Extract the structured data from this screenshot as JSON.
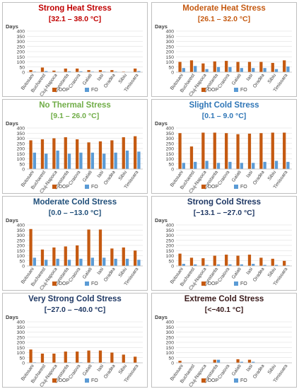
{
  "chart_data": [
    {
      "type": "bar",
      "title": "Strong Heat Stress",
      "subtitle": "[32.1 – 38.0 °C]",
      "title_color": "#c00000",
      "ylabel": "Days",
      "ylim": [
        0,
        400
      ],
      "yticks": [
        "0",
        "50",
        "100",
        "150",
        "200",
        "250",
        "300",
        "350",
        "400"
      ],
      "categories": [
        "Botosani",
        "Bucharest",
        "Cluj-Napoca",
        "Constanta",
        "Craiova",
        "Galati",
        "Iasi",
        "Oradea",
        "Sibiu",
        "Timisoara"
      ],
      "series": [
        {
          "name": "DOP",
          "color": "#c55a11",
          "values": [
            20,
            45,
            15,
            35,
            35,
            20,
            20,
            20,
            5,
            35
          ]
        },
        {
          "name": "FO",
          "color": "#5b9bd5",
          "values": [
            5,
            10,
            3,
            8,
            8,
            5,
            5,
            5,
            1,
            10
          ]
        }
      ]
    },
    {
      "type": "bar",
      "title": "Moderate Heat Stress",
      "subtitle": "[26.1 – 32.0 °C]",
      "title_color": "#c55a11",
      "ylabel": "Days",
      "ylim": [
        0,
        400
      ],
      "yticks": [
        "0",
        "50",
        "100",
        "150",
        "200",
        "250",
        "300",
        "350",
        "400"
      ],
      "categories": [
        "Botosani",
        "Bucharest",
        "Cluj-Napoca",
        "Constanta",
        "Craiova",
        "Galati",
        "Iasi",
        "Oradea",
        "Sibiu",
        "Timisoara"
      ],
      "series": [
        {
          "name": "DOP",
          "color": "#c55a11",
          "values": [
            100,
            115,
            85,
            105,
            110,
            100,
            100,
            100,
            90,
            115
          ]
        },
        {
          "name": "FO",
          "color": "#5b9bd5",
          "values": [
            40,
            60,
            30,
            50,
            50,
            40,
            40,
            40,
            30,
            55
          ]
        }
      ]
    },
    {
      "type": "bar",
      "title": "No Thermal Stress",
      "subtitle": "[9.1 – 26.0 °C]",
      "title_color": "#70ad47",
      "ylabel": "Days",
      "ylim": [
        0,
        400
      ],
      "yticks": [
        "0",
        "50",
        "100",
        "150",
        "200",
        "250",
        "300",
        "350",
        "400"
      ],
      "categories": [
        "Botosani",
        "Bucharest",
        "Cluj-Napoca",
        "Constanta",
        "Craiova",
        "Galati",
        "Iasi",
        "Oradea",
        "Sibiu",
        "Timisoara"
      ],
      "series": [
        {
          "name": "DOP",
          "color": "#c55a11",
          "values": [
            280,
            290,
            300,
            310,
            290,
            260,
            270,
            280,
            310,
            320
          ]
        },
        {
          "name": "FO",
          "color": "#5b9bd5",
          "values": [
            160,
            150,
            180,
            150,
            160,
            160,
            150,
            160,
            180,
            170
          ]
        }
      ]
    },
    {
      "type": "bar",
      "title": "Slight Cold Stress",
      "subtitle": "[0.1 – 9.0 °C]",
      "title_color": "#2e75b6",
      "ylabel": "Days",
      "ylim": [
        0,
        400
      ],
      "yticks": [
        "0",
        "50",
        "100",
        "150",
        "200",
        "250",
        "300",
        "350",
        "400"
      ],
      "categories": [
        "Botosani",
        "Bucharest",
        "Cluj-Napoca",
        "Constanta",
        "Craiova",
        "Galati",
        "Iasi",
        "Oradea",
        "Sibiu",
        "Timisoara"
      ],
      "series": [
        {
          "name": "DOP",
          "color": "#c55a11",
          "values": [
            350,
            220,
            355,
            355,
            350,
            340,
            345,
            350,
            355,
            355
          ]
        },
        {
          "name": "FO",
          "color": "#5b9bd5",
          "values": [
            60,
            70,
            80,
            60,
            70,
            60,
            60,
            70,
            80,
            70
          ]
        }
      ]
    },
    {
      "type": "bar",
      "title": "Moderate Cold Stress",
      "subtitle": "[0.0 – −13.0 °C]",
      "title_color": "#1f4e79",
      "ylabel": "Days",
      "ylim": [
        0,
        400
      ],
      "yticks": [
        "0",
        "50",
        "100",
        "150",
        "200",
        "250",
        "300",
        "350",
        "400"
      ],
      "categories": [
        "Botosani",
        "Bucharest",
        "Cluj-Napoca",
        "Constanta",
        "Craiova",
        "Galati",
        "Iasi",
        "Oradea",
        "Sibiu",
        "Timisoara"
      ],
      "series": [
        {
          "name": "DOP",
          "color": "#c55a11",
          "values": [
            360,
            160,
            180,
            190,
            200,
            355,
            355,
            170,
            180,
            150
          ]
        },
        {
          "name": "FO",
          "color": "#5b9bd5",
          "values": [
            80,
            60,
            70,
            60,
            70,
            80,
            80,
            70,
            70,
            60
          ]
        }
      ]
    },
    {
      "type": "bar",
      "title": "Strong Cold Stress",
      "subtitle": "[−13.1 – −27.0 °C]",
      "title_color": "#1f3864",
      "ylabel": "Days",
      "ylim": [
        0,
        400
      ],
      "yticks": [
        "0",
        "50",
        "100",
        "150",
        "200",
        "250",
        "300",
        "350",
        "400"
      ],
      "categories": [
        "Botosani",
        "Bucharest",
        "Cluj-Napoca",
        "Constanta",
        "Craiova",
        "Galati",
        "Iasi",
        "Oradea",
        "Sibiu",
        "Timisoara"
      ],
      "series": [
        {
          "name": "DOP",
          "color": "#c55a11",
          "values": [
            120,
            80,
            75,
            100,
            110,
            100,
            110,
            80,
            70,
            50
          ]
        },
        {
          "name": "FO",
          "color": "#5b9bd5",
          "values": [
            20,
            15,
            10,
            15,
            15,
            15,
            20,
            10,
            10,
            5
          ]
        }
      ]
    },
    {
      "type": "bar",
      "title": "Very Strong Cold Stress",
      "subtitle": "[−27.0 – −40.0 °C]",
      "title_color": "#1f3864",
      "ylabel": "Days",
      "ylim": [
        0,
        400
      ],
      "yticks": [
        "0",
        "50",
        "100",
        "150",
        "200",
        "250",
        "300",
        "350",
        "400"
      ],
      "categories": [
        "Botosani",
        "Bucharest",
        "Cluj-Napoca",
        "Constanta",
        "Craiova",
        "Galati",
        "Iasi",
        "Oradea",
        "Sibiu",
        "Timisoara"
      ],
      "series": [
        {
          "name": "DOP",
          "color": "#c55a11",
          "values": [
            130,
            90,
            90,
            110,
            110,
            120,
            120,
            100,
            80,
            60
          ]
        },
        {
          "name": "FO",
          "color": "#5b9bd5",
          "values": [
            5,
            3,
            3,
            5,
            5,
            5,
            5,
            3,
            3,
            2
          ]
        }
      ]
    },
    {
      "type": "bar",
      "title": "Extreme Cold Stress",
      "subtitle": "[<−40.1 °C]",
      "title_color": "#3a1a1a",
      "ylabel": "Days",
      "ylim": [
        0,
        400
      ],
      "yticks": [
        "0",
        "50",
        "100",
        "150",
        "200",
        "250",
        "300",
        "350",
        "400"
      ],
      "categories": [
        "Botosani",
        "Bucharest",
        "Cluj-Napoca",
        "Constanta",
        "Craiova",
        "Galati",
        "Iasi",
        "Oradea",
        "Sibiu",
        "Timisoara"
      ],
      "series": [
        {
          "name": "DOP",
          "color": "#c55a11",
          "values": [
            20,
            0,
            0,
            30,
            0,
            35,
            30,
            0,
            0,
            0
          ]
        },
        {
          "name": "FO",
          "color": "#5b9bd5",
          "values": [
            0,
            0,
            0,
            30,
            0,
            10,
            10,
            0,
            0,
            0
          ]
        }
      ]
    }
  ]
}
